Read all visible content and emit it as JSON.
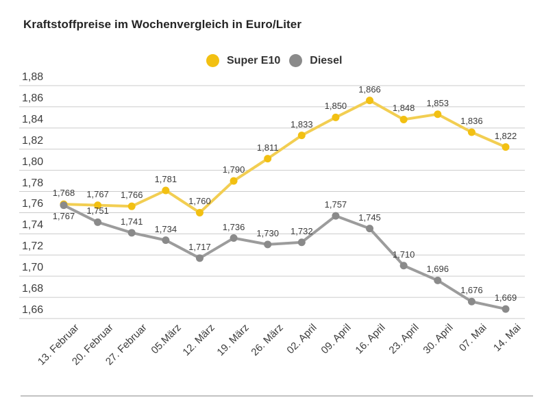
{
  "title": "Kraftstoffpreise im Wochenvergleich in Euro/Liter",
  "legend": {
    "items": [
      {
        "label": "Super E10",
        "color": "#F2C012"
      },
      {
        "label": "Diesel",
        "color": "#8A8A8A"
      }
    ]
  },
  "colors": {
    "gridline": "#CBCBCB",
    "axis_text": "#3C3C3C",
    "divider": "#C2C2C2"
  },
  "chart_data": {
    "type": "line",
    "title": "Kraftstoffpreise im Wochenvergleich in Euro/Liter",
    "categories": [
      "13. Februar",
      "20. Februar",
      "27. Februar",
      "05.März",
      "12. März",
      "19. März",
      "26. März",
      "02. April",
      "09. April",
      "16. April",
      "23. April",
      "30. April",
      "07. Mai",
      "14. Mai"
    ],
    "series": [
      {
        "name": "Super E10",
        "values": [
          1.768,
          1.767,
          1.766,
          1.781,
          1.76,
          1.79,
          1.811,
          1.833,
          1.85,
          1.866,
          1.848,
          1.853,
          1.836,
          1.822
        ],
        "line_color": "#F2CE52",
        "marker_color": "#F2C012",
        "first_label_position": "above"
      },
      {
        "name": "Diesel",
        "values": [
          1.767,
          1.751,
          1.741,
          1.734,
          1.717,
          1.736,
          1.73,
          1.732,
          1.757,
          1.745,
          1.71,
          1.696,
          1.676,
          1.669
        ],
        "line_color": "#9C9C9C",
        "marker_color": "#8A8A8A",
        "first_label_position": "below"
      }
    ],
    "y_ticks": [
      "1,88",
      "1,86",
      "1,84",
      "1,82",
      "1,80",
      "1,78",
      "1,76",
      "1,74",
      "1,72",
      "1,70",
      "1,68",
      "1,66"
    ],
    "ylim": [
      1.66,
      1.88
    ],
    "xlabel": "",
    "ylabel": "",
    "unit": "Euro/Liter",
    "grid": true,
    "legend_position": "top-center",
    "decimal_separator": ",",
    "value_labels": true
  }
}
